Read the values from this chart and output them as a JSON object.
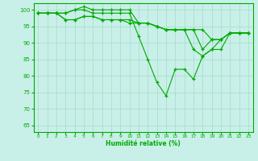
{
  "title": "",
  "xlabel": "Humidité relative (%)",
  "ylabel": "",
  "bg_color": "#c8f0e8",
  "grid_color": "#a8d8cc",
  "line_color": "#00aa00",
  "marker_color": "#00aa00",
  "xlim": [
    -0.5,
    23.5
  ],
  "ylim": [
    63,
    102
  ],
  "yticks": [
    65,
    70,
    75,
    80,
    85,
    90,
    95,
    100
  ],
  "xticks": [
    0,
    1,
    2,
    3,
    4,
    5,
    6,
    7,
    8,
    9,
    10,
    11,
    12,
    13,
    14,
    15,
    16,
    17,
    18,
    19,
    20,
    21,
    22,
    23
  ],
  "series": [
    [
      99,
      99,
      99,
      99,
      100,
      100,
      99,
      99,
      99,
      99,
      99,
      92,
      85,
      78,
      74,
      82,
      82,
      79,
      86,
      88,
      91,
      93,
      93,
      93
    ],
    [
      99,
      99,
      99,
      99,
      100,
      101,
      100,
      100,
      100,
      100,
      100,
      96,
      96,
      95,
      94,
      94,
      94,
      94,
      94,
      91,
      91,
      93,
      93,
      93
    ],
    [
      99,
      99,
      99,
      97,
      97,
      98,
      98,
      97,
      97,
      97,
      97,
      96,
      96,
      95,
      94,
      94,
      94,
      94,
      88,
      91,
      91,
      93,
      93,
      93
    ],
    [
      99,
      99,
      99,
      97,
      97,
      98,
      98,
      97,
      97,
      97,
      96,
      96,
      96,
      95,
      94,
      94,
      94,
      88,
      86,
      88,
      88,
      93,
      93,
      93
    ]
  ]
}
